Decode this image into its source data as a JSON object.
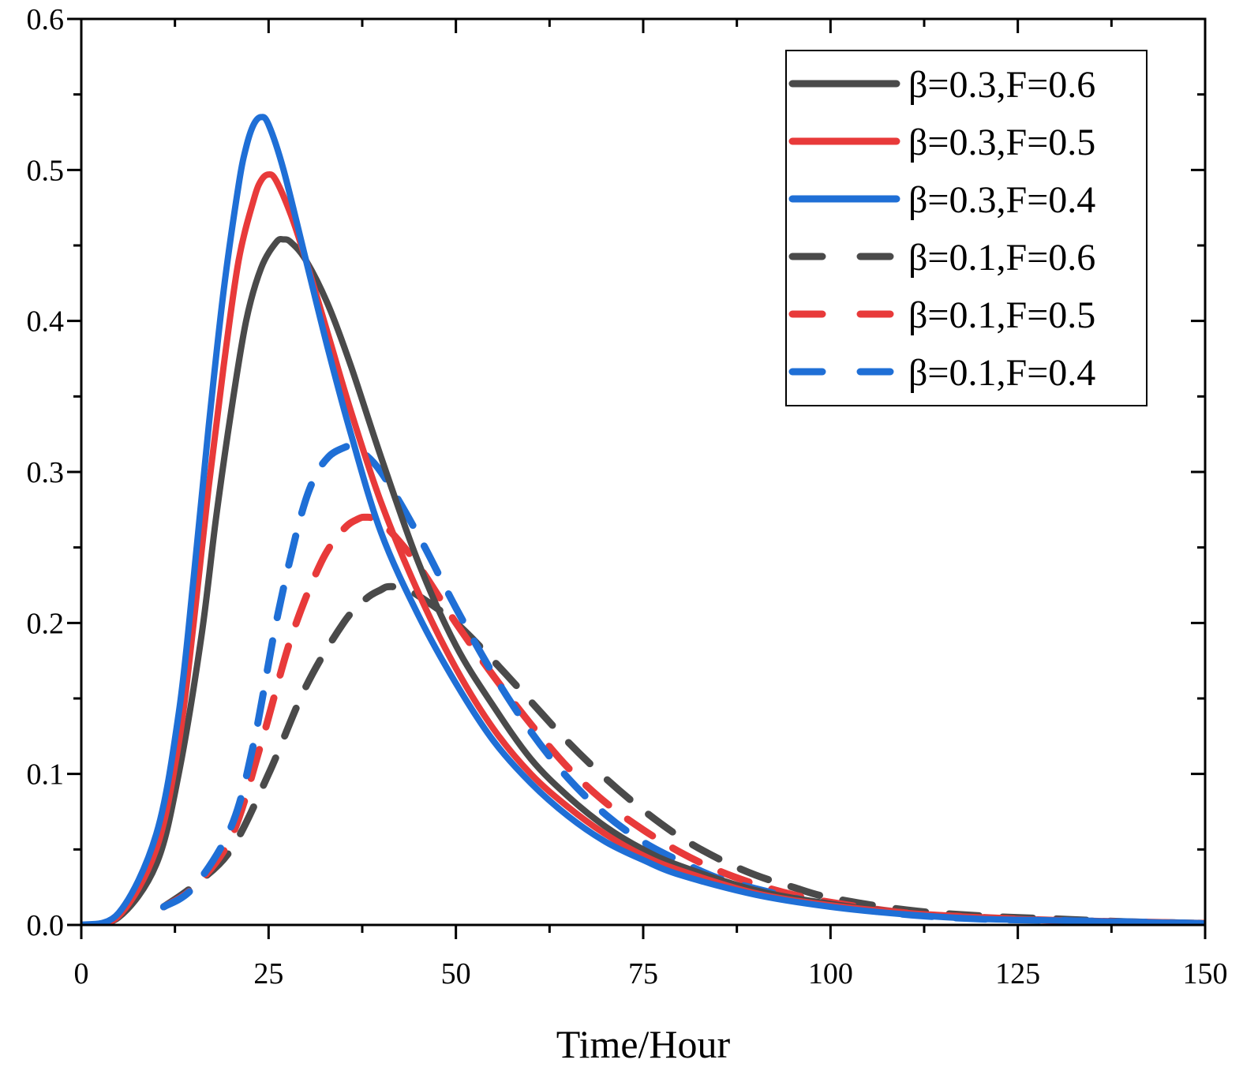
{
  "chart_data": {
    "type": "line",
    "title": "",
    "xlabel": "Time/Hour",
    "ylabel": "",
    "xlim": [
      0,
      150
    ],
    "ylim": [
      0,
      0.6
    ],
    "xticks": [
      0,
      25,
      50,
      75,
      100,
      125,
      150
    ],
    "xtick_labels": [
      "0",
      "25",
      "50",
      "75",
      "100",
      "125",
      "150"
    ],
    "yticks": [
      0,
      0.1,
      0.2,
      0.3,
      0.4,
      0.5,
      0.6
    ],
    "ytick_labels": [
      "0.0",
      "0.1",
      "0.2",
      "0.3",
      "0.4",
      "0.5",
      "0.6"
    ],
    "grid": false,
    "legend_position": "top-right",
    "series": [
      {
        "name": "β=0.3,F=0.6",
        "color": "#4a4a4a",
        "dash": "solid",
        "x": [
          0,
          5,
          10,
          13,
          16,
          18,
          20,
          22,
          24,
          26,
          27,
          28,
          30,
          33,
          36,
          40,
          45,
          50,
          55,
          60,
          65,
          70,
          75,
          80,
          90,
          100,
          110,
          120,
          130,
          140,
          150
        ],
        "y": [
          0.0,
          0.005,
          0.04,
          0.1,
          0.19,
          0.27,
          0.34,
          0.4,
          0.435,
          0.452,
          0.454,
          0.452,
          0.44,
          0.41,
          0.37,
          0.31,
          0.24,
          0.185,
          0.145,
          0.11,
          0.085,
          0.065,
          0.05,
          0.039,
          0.023,
          0.014,
          0.008,
          0.005,
          0.003,
          0.002,
          0.001
        ]
      },
      {
        "name": "β=0.3,F=0.5",
        "color": "#e83a3a",
        "dash": "solid",
        "x": [
          0,
          5,
          10,
          13,
          15,
          17,
          19,
          21,
          23,
          24,
          25,
          26,
          28,
          30,
          33,
          36,
          40,
          45,
          50,
          55,
          60,
          65,
          70,
          75,
          80,
          90,
          100,
          110,
          120,
          130,
          140,
          150
        ],
        "y": [
          0.0,
          0.006,
          0.05,
          0.12,
          0.2,
          0.29,
          0.37,
          0.44,
          0.48,
          0.493,
          0.497,
          0.493,
          0.47,
          0.44,
          0.39,
          0.34,
          0.28,
          0.22,
          0.17,
          0.13,
          0.1,
          0.078,
          0.06,
          0.046,
          0.036,
          0.021,
          0.013,
          0.008,
          0.005,
          0.003,
          0.002,
          0.001
        ]
      },
      {
        "name": "β=0.3,F=0.4",
        "color": "#1f6fd6",
        "dash": "solid",
        "x": [
          0,
          5,
          10,
          13,
          15,
          17,
          19,
          21,
          22,
          23,
          24,
          25,
          27,
          30,
          33,
          36,
          40,
          45,
          50,
          55,
          60,
          65,
          70,
          75,
          80,
          90,
          100,
          110,
          120,
          130,
          140,
          150
        ],
        "y": [
          0.0,
          0.008,
          0.06,
          0.14,
          0.23,
          0.33,
          0.42,
          0.49,
          0.515,
          0.53,
          0.535,
          0.53,
          0.5,
          0.44,
          0.38,
          0.325,
          0.26,
          0.205,
          0.16,
          0.122,
          0.094,
          0.072,
          0.055,
          0.043,
          0.033,
          0.02,
          0.012,
          0.007,
          0.004,
          0.003,
          0.002,
          0.001
        ]
      },
      {
        "name": "β=0.1,F=0.6",
        "color": "#4a4a4a",
        "dash": "dashed",
        "x": [
          11,
          15,
          20,
          25,
          30,
          35,
          38,
          40,
          41,
          43,
          45,
          50,
          55,
          60,
          65,
          70,
          75,
          80,
          85,
          90,
          95,
          100,
          110,
          120,
          130,
          140,
          150
        ],
        "y": [
          0.012,
          0.026,
          0.05,
          0.1,
          0.158,
          0.2,
          0.216,
          0.222,
          0.224,
          0.223,
          0.218,
          0.2,
          0.175,
          0.148,
          0.121,
          0.097,
          0.076,
          0.058,
          0.044,
          0.033,
          0.025,
          0.018,
          0.01,
          0.006,
          0.004,
          0.002,
          0.001
        ]
      },
      {
        "name": "β=0.1,F=0.5",
        "color": "#e83a3a",
        "dash": "dashed",
        "x": [
          11,
          15,
          20,
          24,
          28,
          32,
          35,
          37,
          38,
          39,
          41,
          45,
          50,
          55,
          60,
          65,
          70,
          75,
          80,
          85,
          90,
          95,
          100,
          110,
          120,
          130,
          140,
          150
        ],
        "y": [
          0.012,
          0.025,
          0.058,
          0.12,
          0.19,
          0.24,
          0.262,
          0.269,
          0.27,
          0.269,
          0.262,
          0.238,
          0.2,
          0.165,
          0.133,
          0.104,
          0.081,
          0.063,
          0.048,
          0.036,
          0.027,
          0.02,
          0.015,
          0.008,
          0.005,
          0.003,
          0.002,
          0.001
        ]
      },
      {
        "name": "β=0.1,F=0.4",
        "color": "#1f6fd6",
        "dash": "dashed",
        "x": [
          11,
          15,
          20,
          23,
          26,
          29,
          31,
          33,
          35,
          36,
          37,
          40,
          45,
          50,
          55,
          60,
          65,
          70,
          75,
          80,
          85,
          90,
          95,
          100,
          110,
          120,
          130,
          140,
          150
        ],
        "y": [
          0.012,
          0.025,
          0.065,
          0.12,
          0.2,
          0.265,
          0.295,
          0.31,
          0.316,
          0.317,
          0.315,
          0.3,
          0.258,
          0.21,
          0.166,
          0.128,
          0.097,
          0.073,
          0.055,
          0.042,
          0.031,
          0.024,
          0.018,
          0.013,
          0.007,
          0.004,
          0.003,
          0.002,
          0.001
        ]
      }
    ]
  }
}
